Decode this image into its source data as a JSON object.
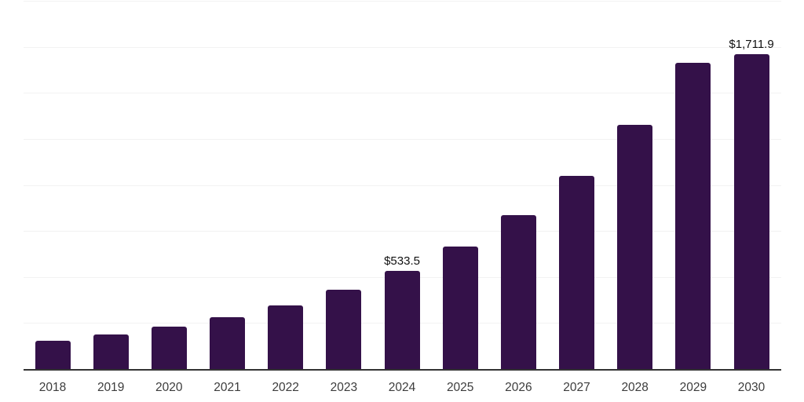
{
  "chart_data": {
    "type": "bar",
    "title": "",
    "xlabel": "",
    "ylabel": "",
    "categories": [
      "2018",
      "2019",
      "2020",
      "2021",
      "2022",
      "2023",
      "2024",
      "2025",
      "2026",
      "2027",
      "2028",
      "2029",
      "2030"
    ],
    "values": [
      152,
      189,
      232,
      280,
      347,
      432,
      533.5,
      667,
      834,
      1049,
      1326,
      1665,
      1711.9
    ],
    "data_labels": [
      null,
      null,
      null,
      null,
      null,
      null,
      "$533.5",
      null,
      null,
      null,
      null,
      null,
      "$1,711.9"
    ],
    "ylim": [
      0,
      2000
    ],
    "gridline_step": 250,
    "grid": "horizontal",
    "legend": "none",
    "colors": {
      "bar": "#341149",
      "gridline": "#f2f2f2",
      "axis": "#333333",
      "tick_label": "#3c3c3c",
      "data_label": "#111111",
      "background": "#ffffff"
    }
  }
}
